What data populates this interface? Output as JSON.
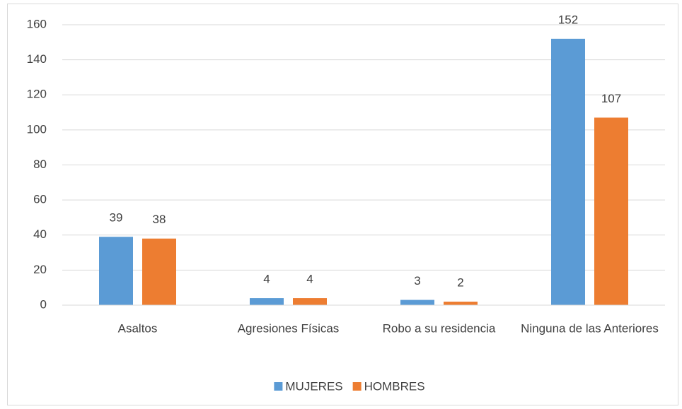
{
  "chart_data": {
    "type": "bar",
    "categories": [
      "Asaltos",
      "Agresiones Físicas",
      "Robo a su residencia",
      "Ninguna de las Anteriores"
    ],
    "series": [
      {
        "name": "MUJERES",
        "color": "#5b9bd5",
        "values": [
          39,
          4,
          3,
          152
        ]
      },
      {
        "name": "HOMBRES",
        "color": "#ed7d31",
        "values": [
          38,
          4,
          2,
          107
        ]
      }
    ],
    "ylim": [
      0,
      160
    ],
    "yticks": [
      0,
      20,
      40,
      60,
      80,
      100,
      120,
      140,
      160
    ],
    "grid": true,
    "legend": "bottom"
  }
}
